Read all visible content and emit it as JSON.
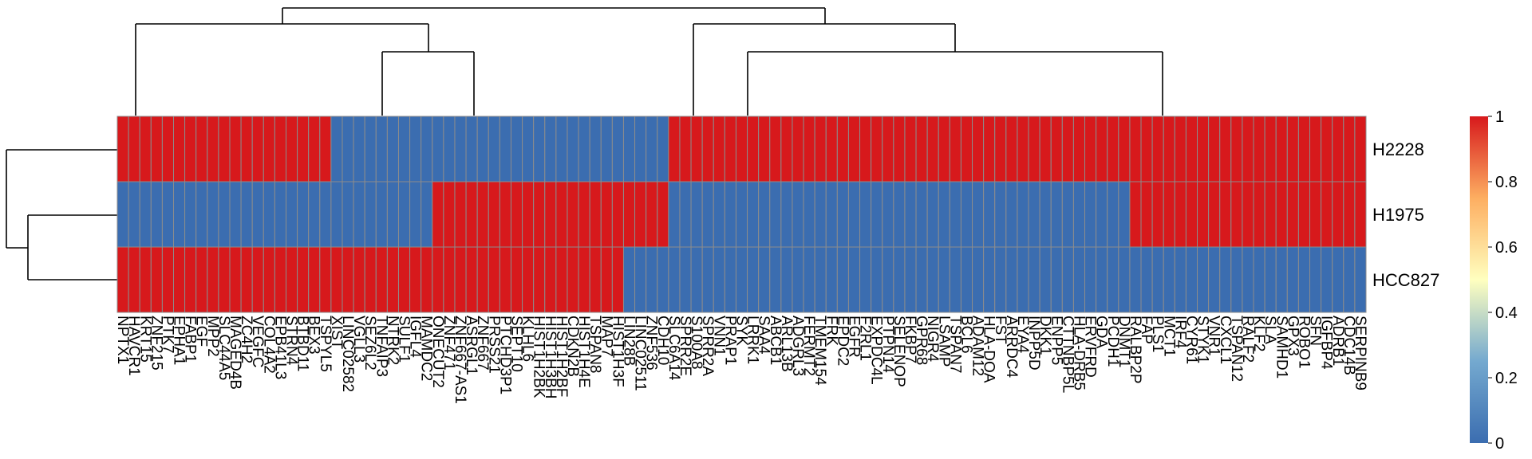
{
  "chart_data": {
    "type": "heatmap",
    "rows": [
      "H2228",
      "H1975",
      "HCC827"
    ],
    "columns": [
      "NPTX1",
      "HAVCR1",
      "KRT15",
      "ZNF215",
      "PTK7",
      "EPHA1",
      "FABP1",
      "EGF",
      "MPP2",
      "SLC44A5",
      "MAGED4B",
      "ZC4H2",
      "VEGFC",
      "COL4A2",
      "EPB41L3",
      "STRN4",
      "BTBD11",
      "BEX3",
      "TSPYL5",
      "XIST",
      "LINC02582",
      "VGLL3",
      "SEZ6L2",
      "TNFAIP3",
      "NTRK2",
      "SULF1",
      "IGFL4",
      "MAMDC2",
      "ONECUT2",
      "ZNF471",
      "ZNF667-AS1",
      "ASRGL1",
      "ZNF667",
      "PRSS21",
      "PTCHD3P1",
      "SEPT10",
      "KLHL6",
      "HIST1H2BK",
      "HIST1H3BH",
      "HIST1H2BF",
      "CDKN2B",
      "HIST1H4E",
      "TSPAN8",
      "MAP7",
      "HIST1H3F",
      "LIN28B",
      "LINC02511",
      "ZNF536",
      "CDH10",
      "SLC6A14",
      "SPRR2E",
      "S100A8",
      "SPRR2A",
      "VNN1",
      "PRAP1",
      "SYK",
      "LRRK1",
      "SAA4",
      "ABCB1",
      "ARL13B",
      "ADGRL3",
      "FERMT2",
      "TMEM154",
      "FRK",
      "EPDC2",
      "EGFR",
      "F2RL1",
      "EXPDC4L",
      "PTPN14",
      "SELENOP",
      "FKBP7",
      "GPR68",
      "NIGR4",
      "LSAMP",
      "TSPAN7",
      "BCL6",
      "ADAM12",
      "HLA-DOA",
      "FST",
      "ARRDC4",
      "EYA4",
      "INPP5D",
      "DKK1",
      "ENPP5",
      "CTTNBP5L",
      "HLA-DRB5",
      "ERVFRD",
      "GDA",
      "PCDH1",
      "DNMT1",
      "RALBP2P",
      "FAP",
      "PLS1",
      "MCT1",
      "IRF4",
      "CYR61",
      "STYK1",
      "VNR1",
      "CXCL1",
      "TSPAN12",
      "RALF2",
      "KLF2",
      "SLA",
      "SAMHD1",
      "GPX3",
      "ROBO1",
      "SFN",
      "IGFBP4",
      "ADRB1",
      "CDC14B",
      "SERPINB9"
    ],
    "values": [
      [
        1,
        1,
        1,
        1,
        1,
        1,
        1,
        1,
        1,
        1,
        1,
        1,
        1,
        1,
        1,
        1,
        1,
        1,
        1,
        0,
        0,
        0,
        0,
        0,
        0,
        0,
        0,
        0,
        0,
        0,
        0,
        0,
        0,
        0,
        0,
        0,
        0,
        0,
        0,
        0,
        0,
        0,
        0,
        0,
        0,
        0,
        0,
        0,
        0,
        1,
        1,
        1,
        1,
        1,
        1,
        1,
        1,
        1,
        1,
        1,
        1,
        1,
        1,
        1,
        1,
        1,
        1,
        1,
        1,
        1,
        1,
        1,
        1,
        1,
        1,
        1,
        1,
        1,
        1,
        1,
        1,
        1,
        1,
        1,
        1,
        1,
        1,
        1,
        1,
        1,
        1,
        1,
        1,
        1,
        1,
        1,
        1,
        1,
        1,
        1,
        1,
        1,
        1,
        1,
        1,
        1,
        1,
        1,
        1,
        1,
        1
      ],
      [
        0,
        0,
        0,
        0,
        0,
        0,
        0,
        0,
        0,
        0,
        0,
        0,
        0,
        0,
        0,
        0,
        0,
        0,
        0,
        0,
        0,
        0,
        0,
        0,
        0,
        0,
        0,
        0,
        1,
        1,
        1,
        1,
        1,
        1,
        1,
        1,
        1,
        1,
        1,
        1,
        1,
        1,
        1,
        1,
        1,
        1,
        1,
        1,
        1,
        0,
        0,
        0,
        0,
        0,
        0,
        0,
        0,
        0,
        0,
        0,
        0,
        0,
        0,
        0,
        0,
        0,
        0,
        0,
        0,
        0,
        0,
        0,
        0,
        0,
        0,
        0,
        0,
        0,
        0,
        0,
        0,
        0,
        0,
        0,
        0,
        0,
        0,
        0,
        0,
        0,
        1,
        1,
        1,
        1,
        1,
        1,
        1,
        1,
        1,
        1,
        1,
        1,
        1,
        1,
        1,
        1,
        1,
        1,
        1,
        1,
        1
      ],
      [
        1,
        1,
        1,
        1,
        1,
        1,
        1,
        1,
        1,
        1,
        1,
        1,
        1,
        1,
        1,
        1,
        1,
        1,
        1,
        1,
        1,
        1,
        1,
        1,
        1,
        1,
        1,
        1,
        1,
        1,
        1,
        1,
        1,
        1,
        1,
        1,
        1,
        1,
        1,
        1,
        1,
        1,
        1,
        1,
        1,
        0,
        0,
        0,
        0,
        0,
        0,
        0,
        0,
        0,
        0,
        0,
        0,
        0,
        0,
        0,
        0,
        0,
        0,
        0,
        0,
        0,
        0,
        0,
        0,
        0,
        0,
        0,
        0,
        0,
        0,
        0,
        0,
        0,
        0,
        0,
        0,
        0,
        0,
        0,
        0,
        0,
        0,
        0,
        0,
        0,
        0,
        0,
        0,
        0,
        0,
        0,
        0,
        0,
        0,
        0,
        0,
        0,
        0,
        0,
        0,
        0,
        0,
        0,
        0,
        0,
        0
      ]
    ],
    "legend": {
      "range": [
        0,
        1
      ],
      "ticks": [
        "1",
        "0.8",
        "0.6",
        "0.4",
        "0.2",
        "0"
      ],
      "colors": [
        "#d7191c",
        "#fdae61",
        "#ffffbf",
        "#abd9e9",
        "#2c7bb6"
      ]
    },
    "colors": {
      "high": "#d7191c",
      "low": "#3b6db0",
      "grid": "#8c8c8c"
    },
    "dendrogram": "columns and rows clustered"
  }
}
